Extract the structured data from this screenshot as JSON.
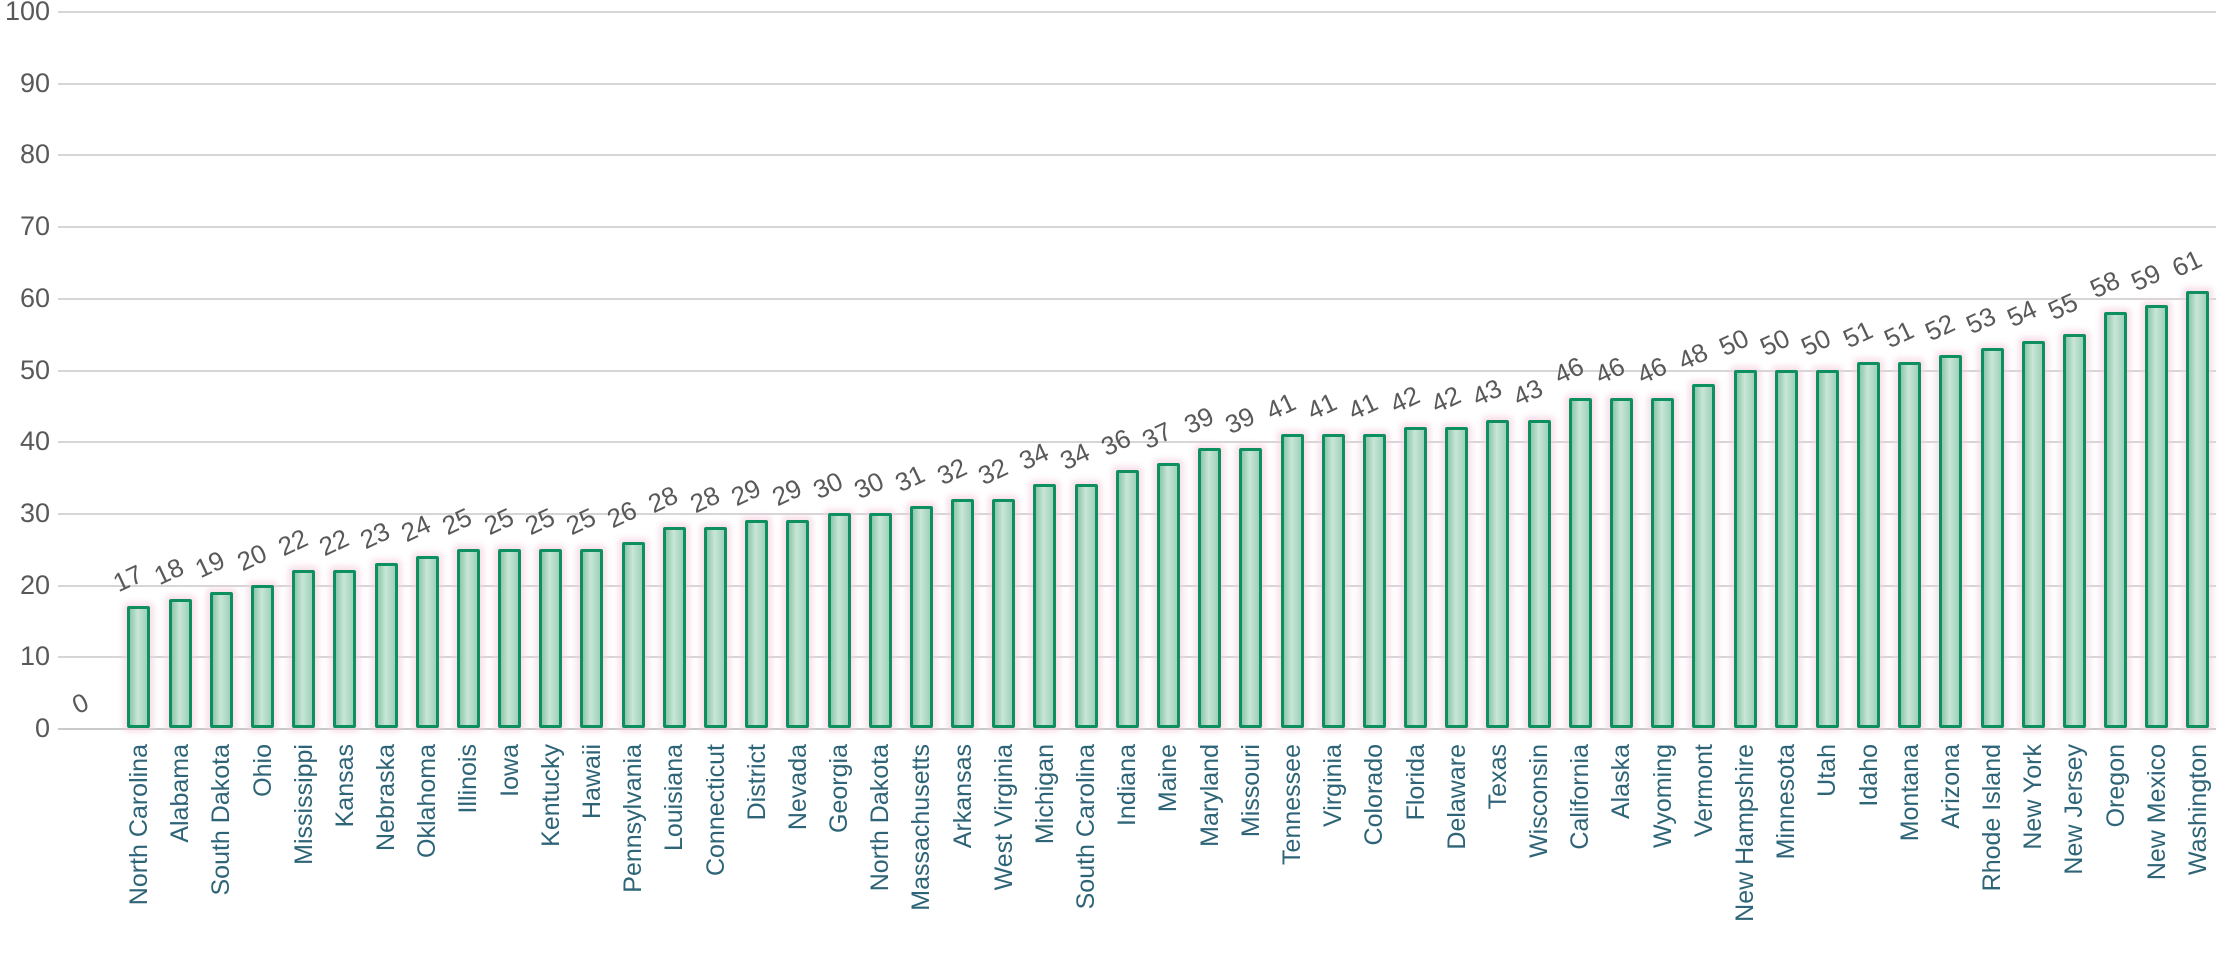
{
  "chart_data": {
    "type": "bar",
    "title": "",
    "xlabel": "",
    "ylabel": "",
    "categories": [
      "",
      "North Carolina",
      "Alabama",
      "South Dakota",
      "Ohio",
      "Mississippi",
      "Kansas",
      "Nebraska",
      "Oklahoma",
      "Illinois",
      "Iowa",
      "Kentucky",
      "Hawaii",
      "Pennsylvania",
      "Louisiana",
      "Connecticut",
      "District",
      "Nevada",
      "Georgia",
      "North Dakota",
      "Massachusetts",
      "Arkansas",
      "West Virginia",
      "Michigan",
      "South Carolina",
      "Indiana",
      "Maine",
      "Maryland",
      "Missouri",
      "Tennessee",
      "Virginia",
      "Colorado",
      "Florida",
      "Delaware",
      "Texas",
      "Wisconsin",
      "California",
      "Alaska",
      "Wyoming",
      "Vermont",
      "New Hampshire",
      "Minnesota",
      "Utah",
      "Idaho",
      "Montana",
      "Arizona",
      "Rhode Island",
      "New York",
      "New Jersey",
      "Oregon",
      "New Mexico",
      "Washington"
    ],
    "values": [
      0,
      17,
      18,
      19,
      20,
      22,
      22,
      23,
      24,
      25,
      25,
      25,
      25,
      26,
      28,
      28,
      29,
      29,
      30,
      30,
      31,
      32,
      32,
      34,
      34,
      36,
      37,
      39,
      39,
      41,
      41,
      41,
      42,
      42,
      43,
      43,
      46,
      46,
      46,
      48,
      50,
      50,
      50,
      51,
      51,
      52,
      53,
      54,
      55,
      58,
      59,
      61
    ],
    "data_labels_visible": true,
    "ylim": [
      0,
      100
    ],
    "yticks": [
      0,
      10,
      20,
      30,
      40,
      50,
      60,
      70,
      80,
      90,
      100
    ],
    "grid": "horizontal",
    "legend": "none",
    "colors": {
      "bar_fill": "#9ed1ba",
      "bar_border": "#0e8f60",
      "bar_halo": "#f5cfdf",
      "gridline": "#d6d6d6",
      "value_label": "#595959",
      "y_tick_label": "#595959",
      "category_label": "#2d6477",
      "background": "#ffffff"
    }
  }
}
